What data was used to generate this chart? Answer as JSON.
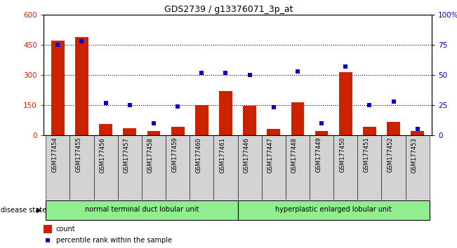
{
  "title": "GDS2739 / g13376071_3p_at",
  "samples": [
    "GSM177454",
    "GSM177455",
    "GSM177456",
    "GSM177457",
    "GSM177458",
    "GSM177459",
    "GSM177460",
    "GSM177461",
    "GSM177446",
    "GSM177447",
    "GSM177448",
    "GSM177449",
    "GSM177450",
    "GSM177451",
    "GSM177452",
    "GSM177453"
  ],
  "counts": [
    470,
    490,
    55,
    35,
    20,
    40,
    150,
    220,
    148,
    30,
    165,
    20,
    315,
    40,
    65,
    20
  ],
  "percentiles": [
    75,
    78,
    27,
    25,
    10,
    24,
    52,
    52,
    50,
    23,
    53,
    10,
    57,
    25,
    28,
    5
  ],
  "group1_label": "normal terminal duct lobular unit",
  "group2_label": "hyperplastic enlarged lobular unit",
  "group1_count": 8,
  "group2_count": 8,
  "bar_color": "#cc2200",
  "dot_color": "#0000cc",
  "bar_width": 0.55,
  "ylim_left": [
    0,
    600
  ],
  "ylim_right": [
    0,
    100
  ],
  "yticks_left": [
    0,
    150,
    300,
    450,
    600
  ],
  "yticks_right": [
    0,
    25,
    50,
    75,
    100
  ],
  "yticklabels_right": [
    "0",
    "25",
    "50",
    "75",
    "100%"
  ],
  "group_color": "#90ee90",
  "cell_color": "#d3d3d3",
  "bg_color": "#ffffff",
  "label_count": "count",
  "label_percentile": "percentile rank within the sample",
  "disease_state_label": "disease state"
}
